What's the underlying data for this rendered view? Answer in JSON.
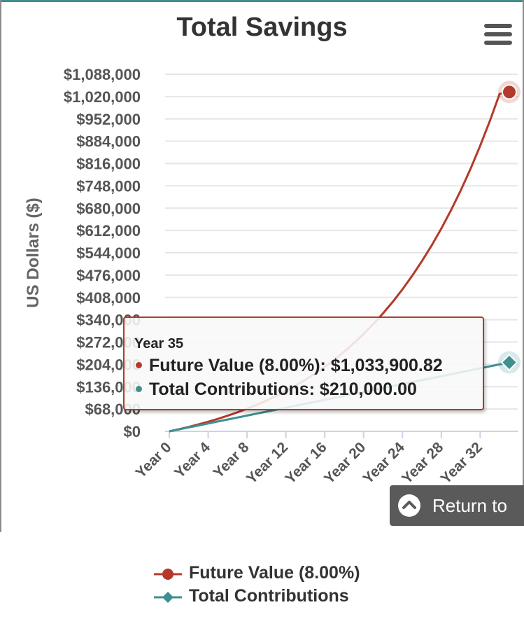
{
  "chart_data": {
    "type": "line",
    "title": "Total Savings",
    "xlabel": "",
    "ylabel": "US Dollars ($)",
    "x": [
      0,
      1,
      2,
      3,
      4,
      5,
      6,
      7,
      8,
      9,
      10,
      11,
      12,
      13,
      14,
      15,
      16,
      17,
      18,
      19,
      20,
      21,
      22,
      23,
      24,
      25,
      26,
      27,
      28,
      29,
      30,
      31,
      32,
      33,
      34,
      35
    ],
    "xticks": [
      "Year 0",
      "Year 4",
      "Year 8",
      "Year 12",
      "Year 16",
      "Year 20",
      "Year 24",
      "Year 28",
      "Year 32"
    ],
    "yticks": [
      "$0",
      "$68,000",
      "$136,000",
      "$204,000",
      "$272,000",
      "$340,000",
      "$408,000",
      "$476,000",
      "$544,000",
      "$612,000",
      "$680,000",
      "$748,000",
      "$816,000",
      "$884,000",
      "$952,000",
      "$1,020,000",
      "$1,088,000"
    ],
    "ylim": [
      0,
      1088000
    ],
    "xlim": [
      0,
      35
    ],
    "grid": true,
    "legend_position": "bottom",
    "series": [
      {
        "name": "Future Value (8.00%)",
        "color": "#b33a2a",
        "marker": "circle",
        "values": [
          0,
          6480,
          13478,
          21037,
          29200,
          38016,
          47537,
          57820,
          68926,
          80920,
          93873,
          107863,
          122972,
          139290,
          156913,
          175946,
          196502,
          218702,
          242678,
          268573,
          296539,
          326742,
          359362,
          394591,
          432638,
          473729,
          518108,
          566037,
          617800,
          673704,
          734080,
          799286,
          869709,
          945765,
          1027906,
          1033900.82
        ]
      },
      {
        "name": "Total Contributions",
        "color": "#3f8f8f",
        "marker": "diamond",
        "values": [
          0,
          6000,
          12000,
          18000,
          24000,
          30000,
          36000,
          42000,
          48000,
          54000,
          60000,
          66000,
          72000,
          78000,
          84000,
          90000,
          96000,
          102000,
          108000,
          114000,
          120000,
          126000,
          132000,
          138000,
          144000,
          150000,
          156000,
          162000,
          168000,
          174000,
          180000,
          186000,
          192000,
          198000,
          204000,
          210000
        ]
      }
    ]
  },
  "tooltip": {
    "header": "Year 35",
    "row1": "Future Value (8.00%): $1,033,900.82",
    "row2": "Total Contributions: $210,000.00"
  },
  "menu_icon": "hamburger-menu-icon",
  "return_button": {
    "label": "Return to",
    "icon": "chevron-up-icon"
  }
}
